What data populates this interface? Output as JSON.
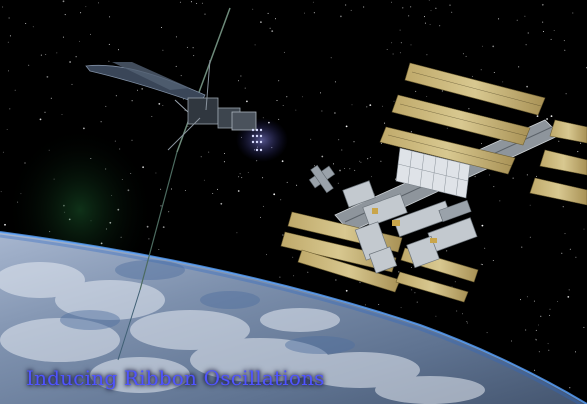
{
  "caption": {
    "text": "Inducing Ribbon Oscillations"
  },
  "colors": {
    "space": "#000000",
    "earth_ocean": "#4a6d9b",
    "earth_cloud": "#e7ecf3",
    "solar_panel": "#c9b77c",
    "caption_text": "#4f54ff"
  },
  "icons": [
    "earth-surface",
    "space-station",
    "ribbon-climber",
    "starfield"
  ]
}
